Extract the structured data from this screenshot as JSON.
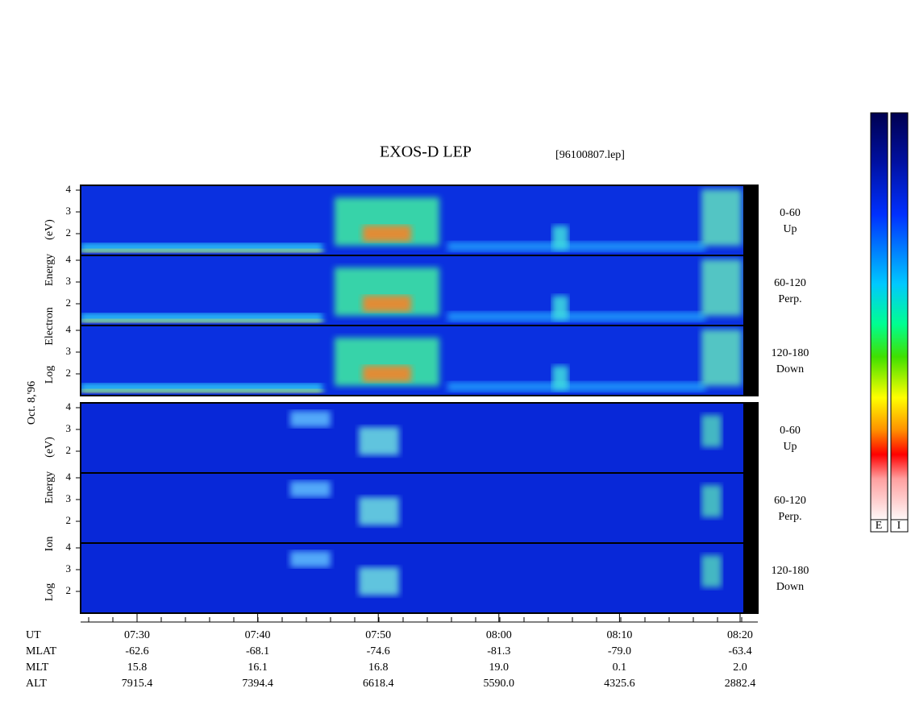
{
  "header": {
    "title": "EXOS-D LEP",
    "file": "[96100807.lep]"
  },
  "date": "Oct. 8,'96",
  "groups": [
    {
      "axis_label": [
        "Log",
        "Electron",
        "Energy",
        "(eV)"
      ]
    },
    {
      "axis_label": [
        "Log",
        "Ion",
        "Energy",
        "(eV)"
      ]
    }
  ],
  "yticks": [
    2,
    3,
    4
  ],
  "panels": [
    [
      "0-60",
      "Up"
    ],
    [
      "60-120",
      "Perp."
    ],
    [
      "120-180",
      "Down"
    ]
  ],
  "time_axis": {
    "rows": [
      "UT",
      "MLAT",
      "MLT",
      "ALT"
    ],
    "columns": [
      [
        "07:30",
        "-62.6",
        "15.8",
        "7915.4"
      ],
      [
        "07:40",
        "-68.1",
        "16.1",
        "7394.4"
      ],
      [
        "07:50",
        "-74.6",
        "16.8",
        "6618.4"
      ],
      [
        "08:00",
        "-81.3",
        "19.0",
        "5590.0"
      ],
      [
        "08:10",
        "-79.0",
        "0.1",
        "4325.6"
      ],
      [
        "08:20",
        "-63.4",
        "2.0",
        "2882.4"
      ]
    ]
  },
  "colorbars": [
    "E",
    "I"
  ]
}
